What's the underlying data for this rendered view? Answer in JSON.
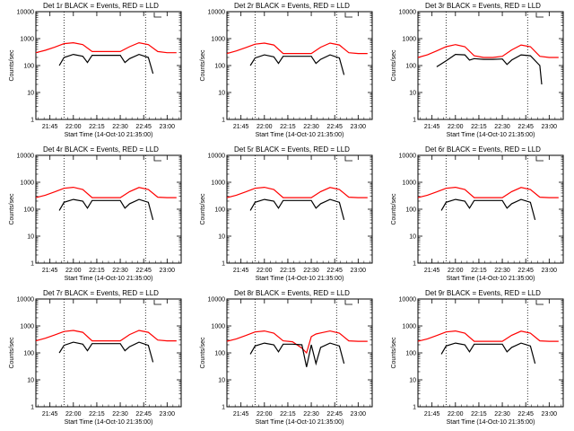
{
  "colors": {
    "events": "#000000",
    "lld": "#ff0000",
    "axis": "#000000",
    "background": "#ffffff"
  },
  "x_ticks": [
    "21:45",
    "22:00",
    "22:15",
    "22:30",
    "22:45",
    "23:00"
  ],
  "y_ticks": [
    "1",
    "10",
    "100",
    "1000",
    "10000"
  ],
  "x_label": "Start Time (14-Oct-10 21:35:00)",
  "y_label": "Counts/sec",
  "chart_data": [
    {
      "type": "line",
      "title": "Det 1r BLACK = Events, RED = LLD",
      "xlabel": "Start Time (14-Oct-10 21:35:00)",
      "ylabel": "Counts/sec",
      "xlim": [
        21.6,
        23.15
      ],
      "ylim": [
        1,
        10000
      ],
      "yscale": "log",
      "vlines": [
        21.9,
        22.77
      ],
      "series": [
        {
          "name": "LLD",
          "color": "#ff0000",
          "x": [
            21.6,
            21.7,
            21.8,
            21.9,
            22.0,
            22.1,
            22.2,
            22.3,
            22.4,
            22.5,
            22.6,
            22.7,
            22.8,
            22.9,
            23.0,
            23.1
          ],
          "y": [
            300,
            370,
            480,
            650,
            700,
            600,
            330,
            330,
            330,
            330,
            500,
            700,
            600,
            330,
            300,
            300
          ]
        },
        {
          "name": "Events",
          "color": "#000000",
          "x": [
            21.85,
            21.9,
            22.0,
            22.1,
            22.15,
            22.2,
            22.3,
            22.4,
            22.5,
            22.55,
            22.6,
            22.7,
            22.8,
            22.85
          ],
          "y": [
            100,
            200,
            260,
            220,
            130,
            240,
            240,
            240,
            240,
            130,
            180,
            260,
            200,
            50
          ]
        }
      ]
    },
    {
      "type": "line",
      "title": "Det 2r BLACK = Events, RED = LLD",
      "xlabel": "Start Time (14-Oct-10 21:35:00)",
      "ylabel": "Counts/sec",
      "xlim": [
        21.6,
        23.15
      ],
      "ylim": [
        1,
        10000
      ],
      "yscale": "log",
      "vlines": [
        21.9,
        22.77
      ],
      "series": [
        {
          "name": "LLD",
          "color": "#ff0000",
          "x": [
            21.6,
            21.7,
            21.8,
            21.9,
            22.0,
            22.1,
            22.2,
            22.3,
            22.4,
            22.5,
            22.6,
            22.7,
            22.8,
            22.9,
            23.0,
            23.1
          ],
          "y": [
            280,
            350,
            460,
            620,
            680,
            580,
            280,
            280,
            280,
            280,
            480,
            680,
            580,
            300,
            280,
            280
          ]
        },
        {
          "name": "Events",
          "color": "#000000",
          "x": [
            21.85,
            21.9,
            22.0,
            22.1,
            22.15,
            22.2,
            22.3,
            22.4,
            22.5,
            22.55,
            22.6,
            22.7,
            22.8,
            22.85
          ],
          "y": [
            100,
            190,
            250,
            210,
            120,
            220,
            220,
            220,
            220,
            120,
            170,
            250,
            190,
            45
          ]
        }
      ]
    },
    {
      "type": "line",
      "title": "Det 3r BLACK = Events, RED = LLD",
      "xlabel": "Start Time (14-Oct-10 21:35:00)",
      "ylabel": "Counts/sec",
      "xlim": [
        21.6,
        23.15
      ],
      "ylim": [
        1,
        10000
      ],
      "yscale": "log",
      "vlines": [
        21.9,
        22.77
      ],
      "series": [
        {
          "name": "LLD",
          "color": "#ff0000",
          "x": [
            21.6,
            21.7,
            21.8,
            21.9,
            22.0,
            22.1,
            22.2,
            22.3,
            22.4,
            22.5,
            22.6,
            22.7,
            22.8,
            22.9,
            23.0,
            23.1
          ],
          "y": [
            200,
            250,
            350,
            500,
            600,
            500,
            230,
            200,
            200,
            220,
            380,
            580,
            500,
            220,
            200,
            200
          ]
        },
        {
          "name": "Events",
          "color": "#000000",
          "x": [
            21.8,
            21.9,
            22.0,
            22.1,
            22.15,
            22.2,
            22.3,
            22.4,
            22.5,
            22.55,
            22.6,
            22.7,
            22.8,
            22.9,
            22.92
          ],
          "y": [
            90,
            150,
            260,
            250,
            160,
            180,
            170,
            170,
            175,
            110,
            160,
            250,
            230,
            100,
            20
          ]
        }
      ]
    },
    {
      "type": "line",
      "title": "Det 4r BLACK = Events, RED = LLD",
      "xlabel": "Start Time (14-Oct-10 21:35:00)",
      "ylabel": "Counts/sec",
      "xlim": [
        21.6,
        23.15
      ],
      "ylim": [
        1,
        10000
      ],
      "yscale": "log",
      "vlines": [
        21.9,
        22.77
      ],
      "series": [
        {
          "name": "LLD",
          "color": "#ff0000",
          "x": [
            21.6,
            21.7,
            21.8,
            21.9,
            22.0,
            22.1,
            22.2,
            22.3,
            22.4,
            22.5,
            22.6,
            22.7,
            22.8,
            22.9,
            23.0,
            23.1
          ],
          "y": [
            270,
            330,
            440,
            600,
            650,
            540,
            270,
            270,
            270,
            270,
            450,
            640,
            540,
            280,
            270,
            270
          ]
        },
        {
          "name": "Events",
          "color": "#000000",
          "x": [
            21.85,
            21.9,
            22.0,
            22.1,
            22.15,
            22.2,
            22.3,
            22.4,
            22.5,
            22.55,
            22.6,
            22.7,
            22.8,
            22.85
          ],
          "y": [
            90,
            180,
            230,
            200,
            110,
            210,
            210,
            210,
            210,
            110,
            160,
            230,
            180,
            40
          ]
        }
      ]
    },
    {
      "type": "line",
      "title": "Det 5r BLACK = Events, RED = LLD",
      "xlabel": "Start Time (14-Oct-10 21:35:00)",
      "ylabel": "Counts/sec",
      "xlim": [
        21.6,
        23.15
      ],
      "ylim": [
        1,
        10000
      ],
      "yscale": "log",
      "vlines": [
        21.9,
        22.77
      ],
      "series": [
        {
          "name": "LLD",
          "color": "#ff0000",
          "x": [
            21.6,
            21.7,
            21.8,
            21.9,
            22.0,
            22.1,
            22.2,
            22.3,
            22.4,
            22.5,
            22.6,
            22.7,
            22.8,
            22.9,
            23.0,
            23.1
          ],
          "y": [
            270,
            330,
            440,
            600,
            650,
            540,
            270,
            270,
            270,
            270,
            450,
            640,
            540,
            280,
            270,
            270
          ]
        },
        {
          "name": "Events",
          "color": "#000000",
          "x": [
            21.85,
            21.9,
            22.0,
            22.1,
            22.15,
            22.2,
            22.3,
            22.4,
            22.5,
            22.55,
            22.6,
            22.7,
            22.8,
            22.85
          ],
          "y": [
            90,
            180,
            230,
            200,
            110,
            210,
            210,
            210,
            210,
            110,
            160,
            230,
            180,
            40
          ]
        }
      ]
    },
    {
      "type": "line",
      "title": "Det 6r BLACK = Events, RED = LLD",
      "xlabel": "Start Time (14-Oct-10 21:35:00)",
      "ylabel": "Counts/sec",
      "xlim": [
        21.6,
        23.15
      ],
      "ylim": [
        1,
        10000
      ],
      "yscale": "log",
      "vlines": [
        21.9,
        22.77
      ],
      "series": [
        {
          "name": "LLD",
          "color": "#ff0000",
          "x": [
            21.6,
            21.7,
            21.8,
            21.9,
            22.0,
            22.1,
            22.2,
            22.3,
            22.4,
            22.5,
            22.6,
            22.7,
            22.8,
            22.9,
            23.0,
            23.1
          ],
          "y": [
            270,
            330,
            440,
            600,
            650,
            540,
            270,
            270,
            270,
            270,
            450,
            640,
            540,
            280,
            270,
            270
          ]
        },
        {
          "name": "Events",
          "color": "#000000",
          "x": [
            21.85,
            21.9,
            22.0,
            22.1,
            22.15,
            22.2,
            22.3,
            22.4,
            22.5,
            22.55,
            22.6,
            22.7,
            22.8,
            22.85
          ],
          "y": [
            90,
            180,
            230,
            200,
            110,
            210,
            210,
            210,
            210,
            110,
            160,
            230,
            180,
            40
          ]
        }
      ]
    },
    {
      "type": "line",
      "title": "Det 7r BLACK = Events, RED = LLD",
      "xlabel": "Start Time (14-Oct-10 21:35:00)",
      "ylabel": "Counts/sec",
      "xlim": [
        21.6,
        23.15
      ],
      "ylim": [
        1,
        10000
      ],
      "yscale": "log",
      "vlines": [
        21.9,
        22.77
      ],
      "series": [
        {
          "name": "LLD",
          "color": "#ff0000",
          "x": [
            21.6,
            21.7,
            21.8,
            21.9,
            22.0,
            22.1,
            22.2,
            22.3,
            22.4,
            22.5,
            22.6,
            22.7,
            22.8,
            22.9,
            23.0,
            23.1
          ],
          "y": [
            280,
            350,
            460,
            620,
            680,
            580,
            280,
            280,
            280,
            280,
            480,
            680,
            580,
            300,
            280,
            280
          ]
        },
        {
          "name": "Events",
          "color": "#000000",
          "x": [
            21.85,
            21.9,
            22.0,
            22.1,
            22.15,
            22.2,
            22.3,
            22.4,
            22.5,
            22.55,
            22.6,
            22.7,
            22.8,
            22.85
          ],
          "y": [
            100,
            190,
            250,
            210,
            120,
            220,
            220,
            220,
            220,
            120,
            170,
            250,
            190,
            45
          ]
        }
      ]
    },
    {
      "type": "line",
      "title": "Det 8r BLACK = Events, RED = LLD",
      "xlabel": "Start Time (14-Oct-10 21:35:00)",
      "ylabel": "Counts/sec",
      "xlim": [
        21.6,
        23.15
      ],
      "ylim": [
        1,
        10000
      ],
      "yscale": "log",
      "vlines": [
        21.9,
        22.77
      ],
      "series": [
        {
          "name": "LLD",
          "color": "#ff0000",
          "x": [
            21.6,
            21.7,
            21.8,
            21.9,
            22.0,
            22.1,
            22.2,
            22.3,
            22.4,
            22.45,
            22.5,
            22.55,
            22.6,
            22.7,
            22.8,
            22.9,
            23.0,
            23.1
          ],
          "y": [
            270,
            330,
            440,
            600,
            650,
            540,
            280,
            260,
            150,
            100,
            400,
            500,
            550,
            650,
            540,
            280,
            270,
            270
          ]
        },
        {
          "name": "Events",
          "color": "#000000",
          "x": [
            21.85,
            21.9,
            22.0,
            22.1,
            22.15,
            22.2,
            22.3,
            22.4,
            22.45,
            22.5,
            22.55,
            22.6,
            22.7,
            22.8,
            22.85
          ],
          "y": [
            90,
            180,
            230,
            200,
            110,
            210,
            210,
            200,
            30,
            200,
            40,
            160,
            230,
            180,
            40
          ]
        }
      ]
    },
    {
      "type": "line",
      "title": "Det 9r BLACK = Events, RED = LLD",
      "xlabel": "Start Time (14-Oct-10 21:35:00)",
      "ylabel": "Counts/sec",
      "xlim": [
        21.6,
        23.15
      ],
      "ylim": [
        1,
        10000
      ],
      "yscale": "log",
      "vlines": [
        21.9,
        22.77
      ],
      "series": [
        {
          "name": "LLD",
          "color": "#ff0000",
          "x": [
            21.6,
            21.7,
            21.8,
            21.9,
            22.0,
            22.1,
            22.2,
            22.3,
            22.4,
            22.5,
            22.6,
            22.7,
            22.8,
            22.9,
            23.0,
            23.1
          ],
          "y": [
            270,
            330,
            440,
            600,
            650,
            540,
            270,
            270,
            270,
            270,
            450,
            640,
            540,
            280,
            270,
            270
          ]
        },
        {
          "name": "Events",
          "color": "#000000",
          "x": [
            21.85,
            21.9,
            22.0,
            22.1,
            22.15,
            22.2,
            22.3,
            22.4,
            22.5,
            22.55,
            22.6,
            22.7,
            22.8,
            22.85
          ],
          "y": [
            90,
            180,
            230,
            200,
            110,
            210,
            210,
            210,
            210,
            110,
            160,
            230,
            180,
            40
          ]
        }
      ]
    }
  ]
}
